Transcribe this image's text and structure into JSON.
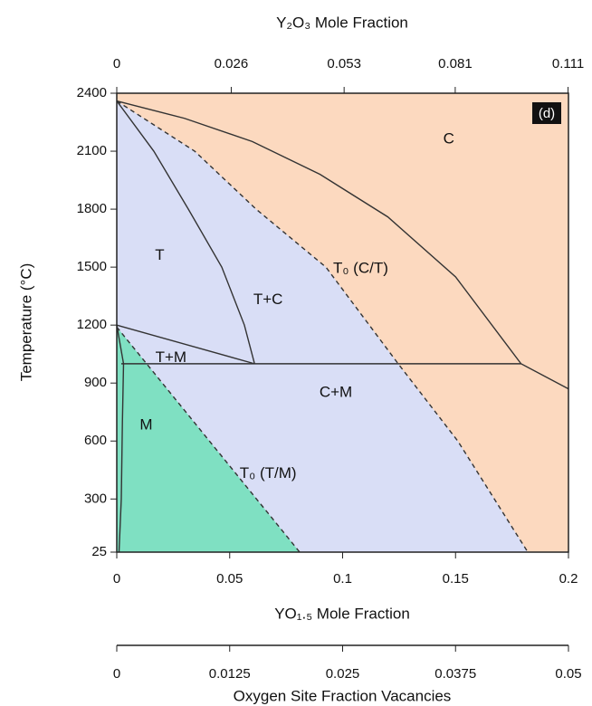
{
  "chart_data": {
    "type": "phase-diagram",
    "panel_label": "(d)",
    "x_label": "YO₁.₅ Mole Fraction",
    "x2_label": "Y₂O₃ Mole Fraction",
    "x3_label": "Oxygen Site Fraction Vacancies",
    "y_label": "Temperature (°C)",
    "xlim": [
      0,
      0.2
    ],
    "xticks": [
      0,
      0.05,
      0.1,
      0.15,
      0.2
    ],
    "x2lim": [
      0,
      0.111
    ],
    "x2ticks": [
      0,
      0.026,
      0.053,
      0.081,
      0.111
    ],
    "x3lim": [
      0,
      0.05
    ],
    "x3ticks": [
      0,
      0.0125,
      0.025,
      0.0375,
      0.05
    ],
    "ylim": [
      25,
      2400
    ],
    "yticks": [
      25,
      300,
      600,
      900,
      1200,
      1500,
      1800,
      2100,
      2400
    ],
    "region_colors": {
      "T": "#d9def6",
      "C": "#fcd9bf",
      "M": "#7fe0c2"
    },
    "boundaries": [
      {
        "style": "solid",
        "x": [
          0,
          0.03,
          0.06,
          0.09,
          0.12,
          0.15,
          0.179,
          0.2
        ],
        "y": [
          2360,
          2270,
          2150,
          1980,
          1760,
          1450,
          1000,
          870
        ]
      },
      {
        "style": "dashed",
        "x": [
          0,
          0.0345,
          0.0617,
          0.0926,
          0.1246,
          0.151,
          0.182
        ],
        "y": [
          2360,
          2100,
          1800,
          1500,
          1000,
          600,
          25
        ]
      },
      {
        "style": "solid",
        "x": [
          0,
          0.0164,
          0.0317,
          0.0465,
          0.0565,
          0.061
        ],
        "y": [
          2360,
          2100,
          1800,
          1500,
          1200,
          1000
        ]
      },
      {
        "style": "solid",
        "x": [
          0,
          0.061
        ],
        "y": [
          1200,
          1000
        ]
      },
      {
        "style": "solid",
        "x": [
          0.002,
          0.179
        ],
        "y": [
          1000,
          1000
        ]
      },
      {
        "style": "solid",
        "x": [
          0,
          0.003
        ],
        "y": [
          1200,
          1000
        ]
      },
      {
        "style": "solid",
        "x": [
          0.003,
          0.0025,
          0.002,
          0.001
        ],
        "y": [
          1000,
          700,
          300,
          25
        ]
      },
      {
        "style": "dashed",
        "x": [
          0,
          0.081
        ],
        "y": [
          1190,
          25
        ]
      }
    ],
    "regions": [
      {
        "label": "C",
        "x": 0.147,
        "y": 2160
      },
      {
        "label": "T",
        "x": 0.019,
        "y": 1560
      },
      {
        "label": "T+C",
        "x": 0.067,
        "y": 1330
      },
      {
        "label": "T+M",
        "x": 0.024,
        "y": 1030
      },
      {
        "label": "C+M",
        "x": 0.097,
        "y": 850
      },
      {
        "label": "M",
        "x": 0.013,
        "y": 680
      },
      {
        "label": "T₀ (C/T)",
        "x": 0.108,
        "y": 1490
      },
      {
        "label": "T₀ (T/M)",
        "x": 0.067,
        "y": 430
      }
    ]
  }
}
